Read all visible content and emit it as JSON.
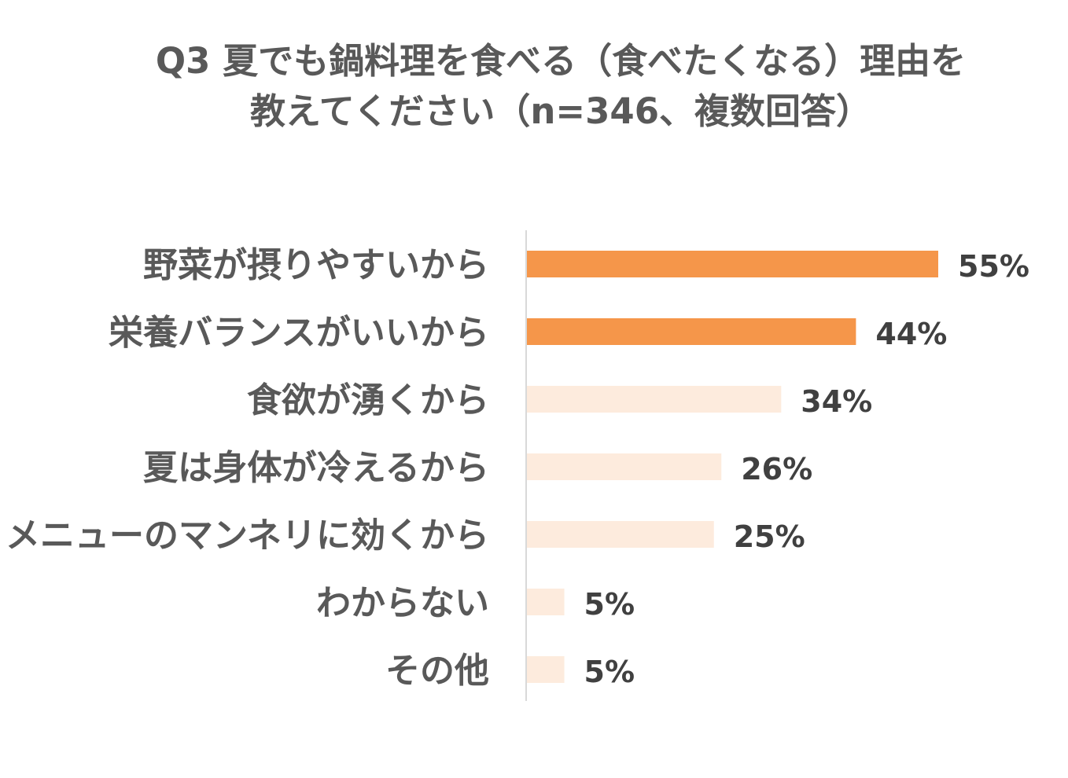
{
  "chart_data": {
    "type": "bar",
    "orientation": "horizontal",
    "title": "Q3 夏でも鍋料理を食べる（食べたくなる）理由を教えてください（n=346、複数回答）",
    "title_lines": [
      "Q3 夏でも鍋料理を食べる（食べたくなる）理由を",
      "教えてください（n=346、複数回答）"
    ],
    "categories": [
      "野菜が摂りやすいから",
      "栄養バランスがいいから",
      "食欲が湧くから",
      "夏は身体が冷えるから",
      "メニューのマンネリに効くから",
      "わからない",
      "その他"
    ],
    "values": [
      55,
      44,
      34,
      26,
      25,
      5,
      5
    ],
    "value_labels": [
      "55%",
      "44%",
      "34%",
      "26%",
      "25%",
      "5%",
      "5%"
    ],
    "unit": "%",
    "xlim": [
      0,
      55
    ],
    "grid": false,
    "legend": "none",
    "colors": {
      "highlight": "#F5964A",
      "normal": "#FDEBDD",
      "axis": "#D9D9D9",
      "category_text": "#595959",
      "value_text": "#404040"
    },
    "highlight_count": 2
  }
}
